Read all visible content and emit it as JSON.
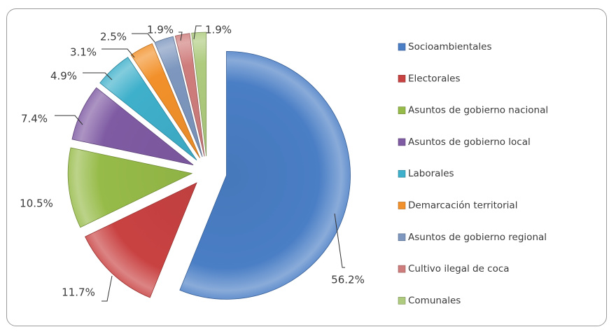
{
  "chart_data": {
    "type": "pie",
    "exploded": true,
    "legend_position": "right",
    "start_angle_deg": 0,
    "direction": "clockwise",
    "categories": [
      "Socioambientales",
      "Electorales",
      "Asuntos de gobierno nacional",
      "Asuntos de gobierno local",
      "Laborales",
      "Demarcación territorial",
      "Asuntos de gobierno regional",
      "Cultivo ilegal de coca",
      "Comunales"
    ],
    "values": [
      56.2,
      11.7,
      10.5,
      7.4,
      4.9,
      3.1,
      2.5,
      1.9,
      1.9
    ],
    "labels": [
      "56.2%",
      "11.7%",
      "10.5%",
      "7.4%",
      "4.9%",
      "3.1%",
      "2.5%",
      "1.9%",
      "1.9%"
    ],
    "colors": [
      "#4A7EC5",
      "#C94242",
      "#97BB49",
      "#7F5BA3",
      "#3FB0CB",
      "#F2912B",
      "#7D97BE",
      "#CF7D7C",
      "#AECB7E"
    ]
  }
}
